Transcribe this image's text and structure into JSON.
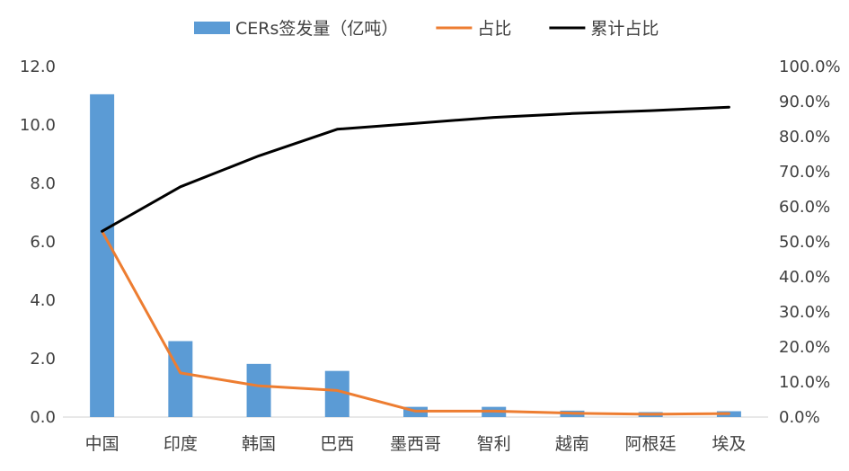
{
  "chart_data": {
    "type": "bar",
    "categories": [
      "中国",
      "印度",
      "韩国",
      "巴西",
      "墨西哥",
      "智利",
      "越南",
      "阿根廷",
      "埃及"
    ],
    "series": [
      {
        "name": "CERs签发量（亿吨）",
        "type": "bar",
        "axis": "left",
        "color": "#5B9BD5",
        "values": [
          11.05,
          2.6,
          1.82,
          1.58,
          0.35,
          0.35,
          0.22,
          0.17,
          0.2
        ]
      },
      {
        "name": "占比",
        "type": "line",
        "axis": "right",
        "color": "#ED7D31",
        "values": [
          53.0,
          12.6,
          8.9,
          7.6,
          1.7,
          1.7,
          1.1,
          0.8,
          1.0
        ]
      },
      {
        "name": "累计占比",
        "type": "line",
        "axis": "right",
        "color": "#000000",
        "values": [
          53.0,
          65.7,
          74.5,
          82.1,
          83.8,
          85.5,
          86.6,
          87.4,
          88.4
        ]
      }
    ],
    "y_left": {
      "ylim": [
        0,
        12
      ],
      "ticks": [
        "0.0",
        "2.0",
        "4.0",
        "6.0",
        "8.0",
        "10.0",
        "12.0"
      ]
    },
    "y_right": {
      "ylim": [
        0,
        100
      ],
      "ticks": [
        "0.0%",
        "10.0%",
        "20.0%",
        "30.0%",
        "40.0%",
        "50.0%",
        "60.0%",
        "70.0%",
        "80.0%",
        "90.0%",
        "100.0%"
      ]
    },
    "grid": false,
    "legend_position": "top"
  }
}
